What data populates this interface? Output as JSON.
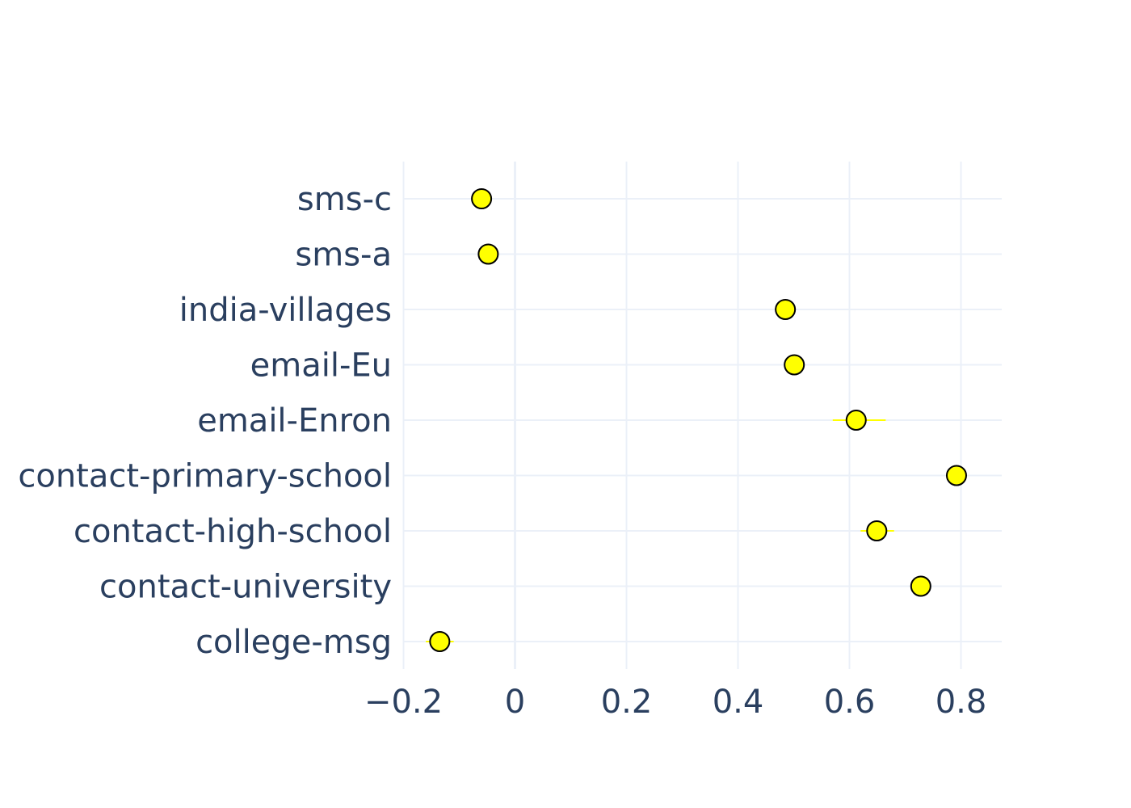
{
  "chart_data": {
    "type": "scatter",
    "title": "",
    "xlabel": "",
    "ylabel": "",
    "xlim": [
      -0.2,
      0.87
    ],
    "x_ticks": [
      -0.2,
      0,
      0.2,
      0.4,
      0.6,
      0.8
    ],
    "x_tick_labels": [
      "−0.2",
      "0",
      "0.2",
      "0.4",
      "0.6",
      "0.8"
    ],
    "categories": [
      "college-msg",
      "contact-university",
      "contact-high-school",
      "contact-primary-school",
      "email-Enron",
      "email-Eu",
      "india-villages",
      "sms-a",
      "sms-c"
    ],
    "values": [
      -0.135,
      0.728,
      0.649,
      0.792,
      0.612,
      0.501,
      0.485,
      -0.048,
      -0.06
    ],
    "error_low": [
      -0.16,
      0.728,
      0.62,
      0.78,
      0.57,
      0.49,
      0.485,
      -0.048,
      -0.075
    ],
    "error_high": [
      -0.11,
      0.728,
      0.68,
      0.8,
      0.665,
      0.515,
      0.485,
      -0.048,
      -0.045
    ],
    "grid": true,
    "legend": "none",
    "colors": {
      "marker_fill": "#ffff00",
      "marker_edge": "#000000",
      "error_line": "#ffff00",
      "grid": "#ebf0f8",
      "zero_line": "#ebf0f8",
      "text": "#2a3f5f"
    }
  }
}
